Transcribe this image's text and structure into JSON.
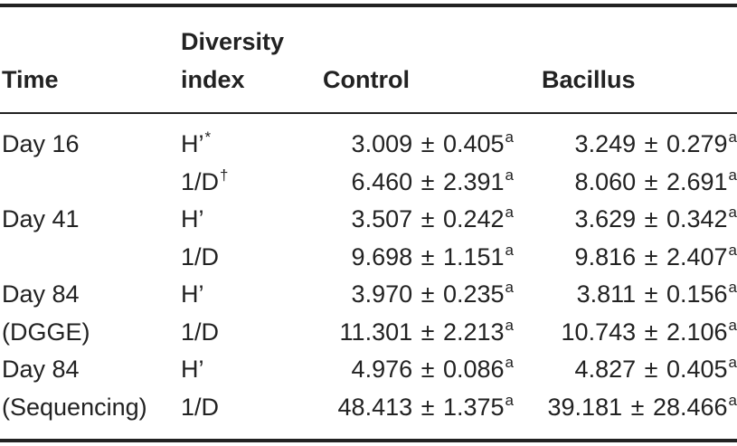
{
  "table": {
    "headers": {
      "time": "Time",
      "diversity_line1": "Diversity",
      "diversity_line2": "index",
      "control": "Control",
      "bacillus": "Bacillus"
    },
    "rows": [
      {
        "time": "Day 16",
        "index": "H’",
        "index_mark": "*",
        "control_mean": "3.009",
        "control_sd": "0.405",
        "control_sup": "a",
        "bacillus_mean": "3.249",
        "bacillus_sd": "0.279",
        "bacillus_sup": "a"
      },
      {
        "time": "",
        "index": "1/D",
        "index_mark": "†",
        "control_mean": "6.460",
        "control_sd": "2.391",
        "control_sup": "a",
        "bacillus_mean": "8.060",
        "bacillus_sd": "2.691",
        "bacillus_sup": "a"
      },
      {
        "time": "Day 41",
        "index": "H’",
        "index_mark": "",
        "control_mean": "3.507",
        "control_sd": "0.242",
        "control_sup": "a",
        "bacillus_mean": "3.629",
        "bacillus_sd": "0.342",
        "bacillus_sup": "a"
      },
      {
        "time": "",
        "index": "1/D",
        "index_mark": "",
        "control_mean": "9.698",
        "control_sd": "1.151",
        "control_sup": "a",
        "bacillus_mean": "9.816",
        "bacillus_sd": "2.407",
        "bacillus_sup": "a"
      },
      {
        "time": "Day 84",
        "index": "H’",
        "index_mark": "",
        "control_mean": "3.970",
        "control_sd": "0.235",
        "control_sup": "a",
        "bacillus_mean": "3.811",
        "bacillus_sd": "0.156",
        "bacillus_sup": "a"
      },
      {
        "time": "(DGGE)",
        "index": "1/D",
        "index_mark": "",
        "control_mean": "11.301",
        "control_sd": "2.213",
        "control_sup": "a",
        "bacillus_mean": "10.743",
        "bacillus_sd": "2.106",
        "bacillus_sup": "a"
      },
      {
        "time": "Day 84",
        "index": "H’",
        "index_mark": "",
        "control_mean": "4.976",
        "control_sd": "0.086",
        "control_sup": "a",
        "bacillus_mean": "4.827",
        "bacillus_sd": "0.405",
        "bacillus_sup": "a"
      },
      {
        "time": "(Sequencing)",
        "index": "1/D",
        "index_mark": "",
        "control_mean": "48.413",
        "control_sd": "1.375",
        "control_sup": "a",
        "bacillus_mean": "39.181",
        "bacillus_sd": "28.466",
        "bacillus_sup": "a"
      }
    ]
  }
}
